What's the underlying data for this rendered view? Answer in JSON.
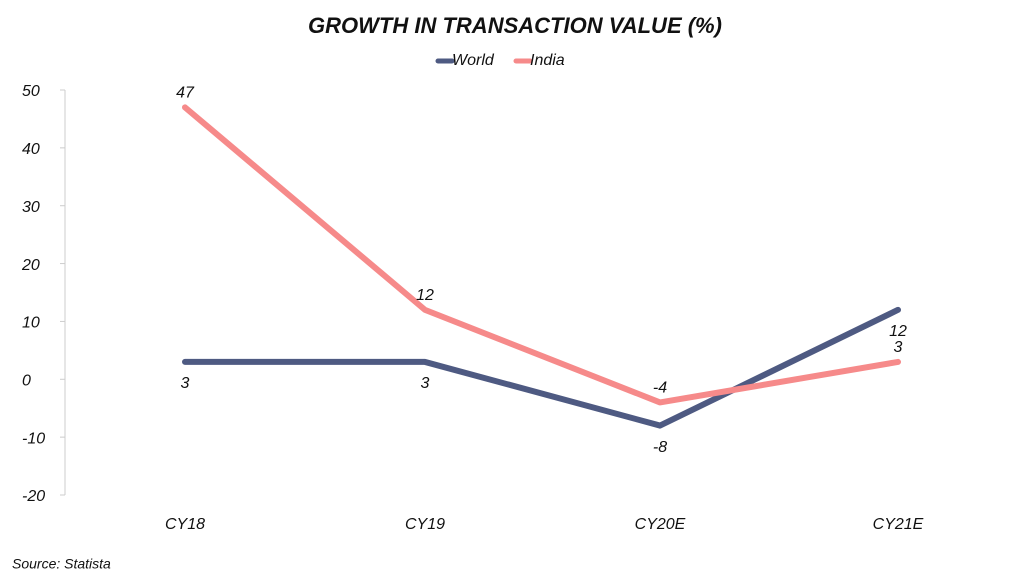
{
  "chart_data": {
    "type": "line",
    "title": "GROWTH IN TRANSACTION VALUE (%)",
    "categories": [
      "CY18",
      "CY19",
      "CY20E",
      "CY21E"
    ],
    "series": [
      {
        "name": "World",
        "color": "#4e5a82",
        "values": [
          3,
          3,
          -8,
          12
        ]
      },
      {
        "name": "India",
        "color": "#f68a8a",
        "values": [
          47,
          12,
          -4,
          3
        ]
      }
    ],
    "ylim": [
      -20,
      50
    ],
    "yticks": [
      -20,
      -10,
      0,
      10,
      20,
      30,
      40,
      50
    ],
    "grid": false,
    "legend": "top",
    "source": "Source: Statista"
  }
}
